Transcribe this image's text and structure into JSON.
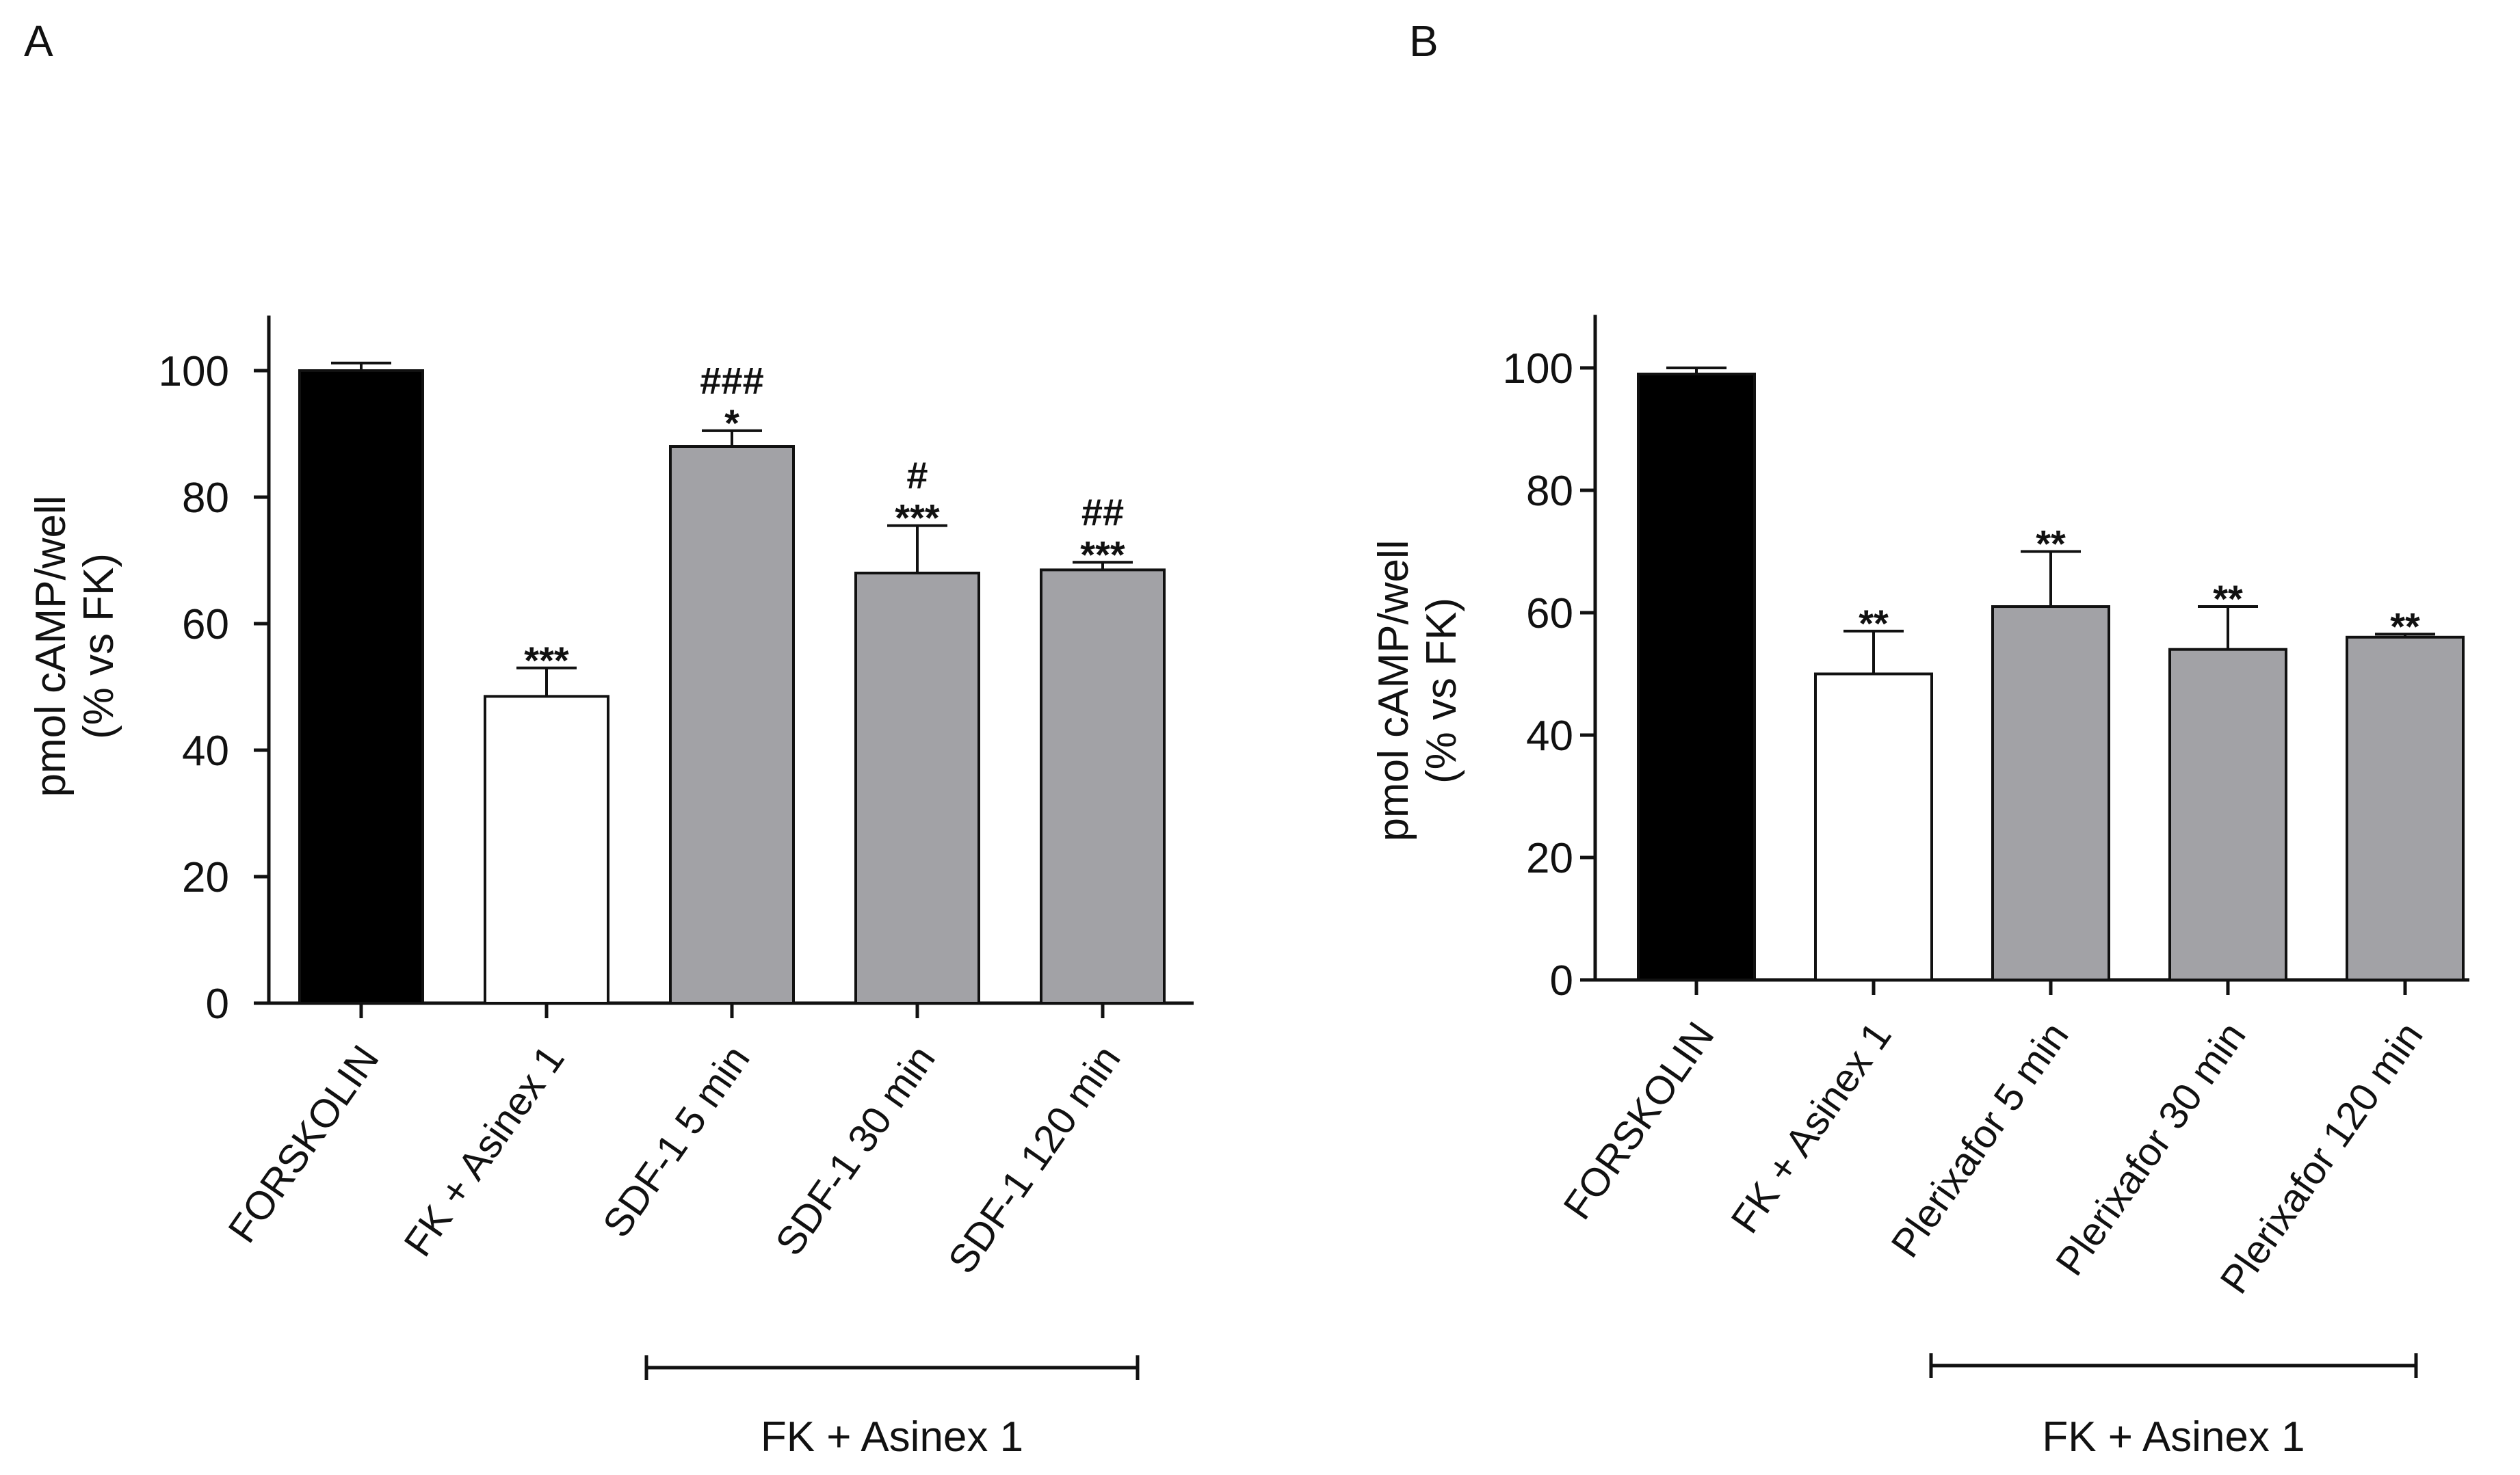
{
  "chart_data": [
    {
      "panel": "A",
      "type": "bar",
      "title": "",
      "ylabel_lines": [
        "pmol cAMP/well",
        "(% vs FK)"
      ],
      "ylim": [
        0,
        110
      ],
      "yticks": [
        0,
        20,
        40,
        60,
        80,
        100
      ],
      "categories": [
        "FORSKOLIN",
        "FK  + Asinex 1",
        "SDF-1  5 min",
        "SDF-1  30 min",
        "SDF-1 120 min"
      ],
      "values": [
        100,
        48.5,
        88,
        68,
        68.5
      ],
      "errors": [
        1.2,
        4.5,
        2.5,
        7.5,
        1.2
      ],
      "bar_colors": [
        "#000000",
        "#ffffff",
        "#a2a2a6",
        "#a2a2a6",
        "#a2a2a6"
      ],
      "annotations": [
        [],
        [
          "***"
        ],
        [
          "###",
          "*"
        ],
        [
          "#",
          "***"
        ],
        [
          "##",
          "***"
        ]
      ],
      "group_bracket": {
        "from": 2,
        "to": 4,
        "label": "FK + Asinex 1"
      }
    },
    {
      "panel": "B",
      "type": "bar",
      "title": "",
      "ylabel_lines": [
        "pmol cAMP/well",
        "(% vs FK)"
      ],
      "ylim": [
        0,
        110
      ],
      "yticks": [
        0,
        20,
        40,
        60,
        80,
        100
      ],
      "categories": [
        "FORSKOLIN",
        "FK + Asinex 1",
        "Plerixafor  5 min",
        "Plerixafor  30 min",
        "Plerixafor 120 min"
      ],
      "values": [
        99,
        50,
        61,
        54,
        56
      ],
      "errors": [
        1,
        7,
        9,
        7,
        0.5
      ],
      "bar_colors": [
        "#000000",
        "#ffffff",
        "#a2a2a6",
        "#a2a2a6",
        "#a2a2a6"
      ],
      "annotations": [
        [],
        [
          "**"
        ],
        [
          "**"
        ],
        [
          "**"
        ],
        [
          "**"
        ]
      ],
      "group_bracket": {
        "from": 2,
        "to": 4,
        "label": "FK + Asinex 1"
      }
    }
  ]
}
